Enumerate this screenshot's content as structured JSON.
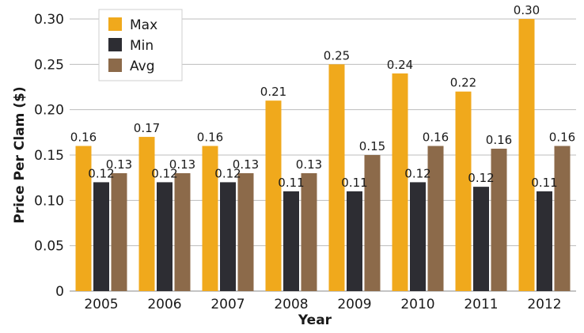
{
  "chart_data": {
    "type": "bar",
    "title": "",
    "xlabel": "Year",
    "ylabel": "Price Per Clam ($)",
    "ylim": [
      0,
      0.3
    ],
    "yticks": [
      "0",
      "0.05",
      "0.10",
      "0.15",
      "0.20",
      "0.25",
      "0.30"
    ],
    "categories": [
      "2005",
      "2006",
      "2007",
      "2008",
      "2009",
      "2010",
      "2011",
      "2012"
    ],
    "grid": true,
    "legend_position": "top-left",
    "series": [
      {
        "name": "Max",
        "color": "#f0a91c",
        "values": [
          0.16,
          0.17,
          0.16,
          0.21,
          0.25,
          0.24,
          0.22,
          0.3
        ],
        "labels": [
          "0.16",
          "0.17",
          "0.16",
          "0.21",
          "0.25",
          "0.24",
          "0.22",
          "0.30"
        ]
      },
      {
        "name": "Min",
        "color": "#2d2d33",
        "values": [
          0.12,
          0.12,
          0.12,
          0.11,
          0.11,
          0.12,
          0.115,
          0.11
        ],
        "labels": [
          "0.12",
          "0.12",
          "0.12",
          "0.11",
          "0.11",
          "0.12",
          "0.12",
          "0.11"
        ]
      },
      {
        "name": "Avg",
        "color": "#8c6a4a",
        "values": [
          0.13,
          0.13,
          0.13,
          0.13,
          0.15,
          0.16,
          0.157,
          0.16
        ],
        "labels": [
          "0.13",
          "0.13",
          "0.13",
          "0.13",
          "0.15",
          "0.16",
          "0.16",
          "0.16"
        ]
      }
    ]
  }
}
